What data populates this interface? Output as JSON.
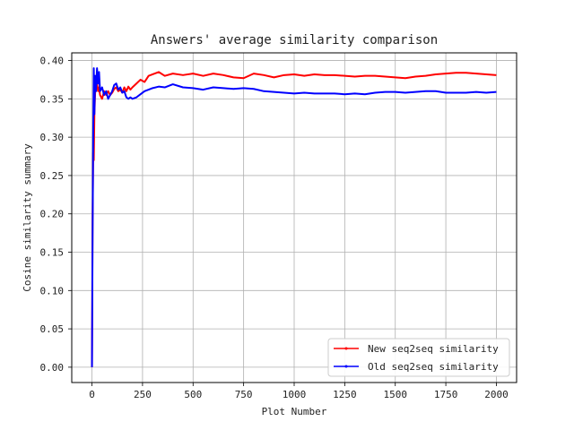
{
  "chart_data": {
    "type": "line",
    "title": "Answers' average similarity comparison",
    "xlabel": "Plot Number",
    "ylabel": "Cosine similarity summary",
    "xlim": [
      -100,
      2100
    ],
    "ylim": [
      -0.02,
      0.41
    ],
    "xticks": [
      0,
      250,
      500,
      750,
      1000,
      1250,
      1500,
      1750,
      2000
    ],
    "yticks": [
      0.0,
      0.05,
      0.1,
      0.15,
      0.2,
      0.25,
      0.3,
      0.35,
      0.4
    ],
    "grid": true,
    "legend_position": "lower-right",
    "series": [
      {
        "name": "New seq2seq similarity",
        "color": "#ff0000",
        "x": [
          0,
          3,
          6,
          9,
          12,
          16,
          20,
          25,
          30,
          35,
          40,
          50,
          60,
          70,
          80,
          90,
          100,
          110,
          120,
          130,
          140,
          150,
          160,
          170,
          180,
          190,
          200,
          220,
          240,
          260,
          280,
          300,
          330,
          360,
          400,
          450,
          500,
          550,
          600,
          650,
          700,
          750,
          800,
          850,
          900,
          950,
          1000,
          1050,
          1100,
          1150,
          1200,
          1250,
          1300,
          1350,
          1400,
          1450,
          1500,
          1550,
          1600,
          1650,
          1700,
          1750,
          1800,
          1850,
          1900,
          1950,
          2000
        ],
        "y": [
          0.0,
          0.19,
          0.28,
          0.27,
          0.33,
          0.36,
          0.38,
          0.37,
          0.36,
          0.365,
          0.355,
          0.35,
          0.36,
          0.355,
          0.36,
          0.355,
          0.358,
          0.363,
          0.365,
          0.36,
          0.362,
          0.358,
          0.365,
          0.36,
          0.366,
          0.362,
          0.365,
          0.37,
          0.375,
          0.372,
          0.38,
          0.382,
          0.385,
          0.38,
          0.383,
          0.381,
          0.383,
          0.38,
          0.383,
          0.381,
          0.378,
          0.377,
          0.383,
          0.381,
          0.378,
          0.381,
          0.382,
          0.38,
          0.382,
          0.381,
          0.381,
          0.38,
          0.379,
          0.38,
          0.38,
          0.379,
          0.378,
          0.377,
          0.379,
          0.38,
          0.382,
          0.383,
          0.384,
          0.384,
          0.383,
          0.382,
          0.381
        ]
      },
      {
        "name": "Old seq2seq similarity",
        "color": "#0000ff",
        "x": [
          0,
          3,
          6,
          9,
          12,
          16,
          20,
          25,
          30,
          35,
          40,
          50,
          60,
          70,
          80,
          90,
          100,
          110,
          120,
          130,
          140,
          150,
          160,
          170,
          180,
          190,
          200,
          220,
          240,
          260,
          280,
          300,
          330,
          360,
          400,
          450,
          500,
          550,
          600,
          650,
          700,
          750,
          800,
          850,
          900,
          950,
          1000,
          1050,
          1100,
          1150,
          1200,
          1250,
          1300,
          1350,
          1400,
          1450,
          1500,
          1550,
          1600,
          1650,
          1700,
          1750,
          1800,
          1850,
          1900,
          1950,
          2000
        ],
        "y": [
          0.0,
          0.17,
          0.3,
          0.39,
          0.33,
          0.38,
          0.36,
          0.39,
          0.37,
          0.385,
          0.36,
          0.365,
          0.355,
          0.36,
          0.35,
          0.355,
          0.36,
          0.368,
          0.37,
          0.362,
          0.365,
          0.358,
          0.36,
          0.352,
          0.35,
          0.352,
          0.35,
          0.352,
          0.356,
          0.36,
          0.362,
          0.364,
          0.366,
          0.365,
          0.369,
          0.365,
          0.364,
          0.362,
          0.365,
          0.364,
          0.363,
          0.364,
          0.363,
          0.36,
          0.359,
          0.358,
          0.357,
          0.358,
          0.357,
          0.357,
          0.357,
          0.356,
          0.357,
          0.356,
          0.358,
          0.359,
          0.359,
          0.358,
          0.359,
          0.36,
          0.36,
          0.358,
          0.358,
          0.358,
          0.359,
          0.358,
          0.359
        ]
      }
    ]
  }
}
